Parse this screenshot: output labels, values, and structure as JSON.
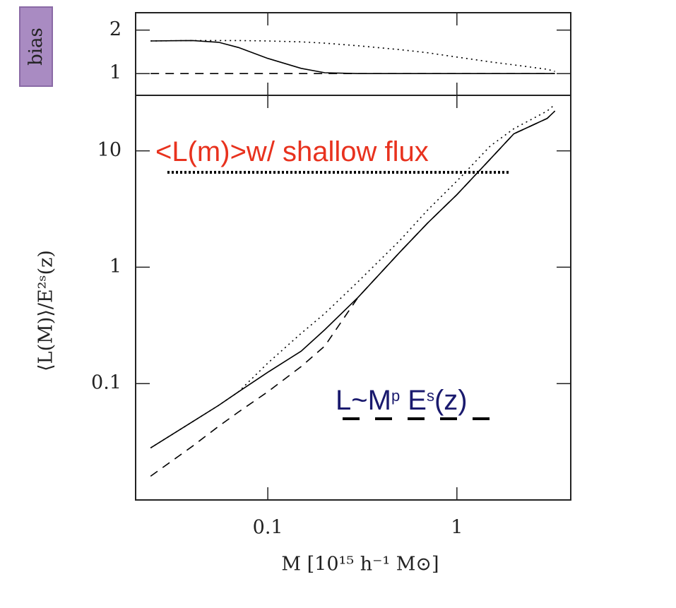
{
  "chart_data": [
    {
      "type": "line",
      "ylabel": "bias",
      "xscale": "log",
      "yscale": "linear",
      "xlim": [
        0.02,
        4
      ],
      "ylim": [
        0.5,
        2.4
      ],
      "xticks": [
        0.1,
        1
      ],
      "yticks": [
        1,
        2
      ],
      "xtick_labels": false,
      "x": [
        0.024,
        0.04,
        0.055,
        0.07,
        0.1,
        0.15,
        0.2,
        0.3,
        0.5,
        0.7,
        1,
        1.5,
        2,
        3,
        3.3
      ],
      "series": [
        {
          "color": "#000000",
          "style": "solid",
          "values": [
            1.75,
            1.76,
            1.72,
            1.6,
            1.35,
            1.12,
            1.02,
            1,
            1,
            1,
            1,
            1,
            1,
            1,
            1
          ]
        },
        {
          "color": "#000000",
          "style": "dotted",
          "values": [
            1.75,
            1.76,
            1.76,
            1.76,
            1.75,
            1.73,
            1.7,
            1.64,
            1.55,
            1.48,
            1.38,
            1.27,
            1.2,
            1.1,
            1.05
          ]
        },
        {
          "color": "#000000",
          "style": "dashed",
          "values": [
            1,
            1,
            1,
            1,
            1,
            1,
            1,
            1,
            1,
            1,
            1,
            1,
            1,
            1,
            1
          ]
        }
      ]
    },
    {
      "type": "line",
      "ylabel": "⟨L(M)⟩/E²ˢ(z)",
      "xlabel": "M [10¹⁵ h⁻¹ M⊙]",
      "xscale": "log",
      "yscale": "log",
      "xlim": [
        0.02,
        4
      ],
      "ylim": [
        0.01,
        30
      ],
      "xticks": [
        0.1,
        1
      ],
      "yticks": [
        0.1,
        1,
        10
      ],
      "xtick_labels": true,
      "x": [
        0.024,
        0.04,
        0.055,
        0.07,
        0.1,
        0.15,
        0.2,
        0.3,
        0.5,
        0.7,
        1,
        1.5,
        2,
        3,
        3.3
      ],
      "series": [
        {
          "color": "#000000",
          "style": "solid",
          "values": [
            0.028,
            0.047,
            0.065,
            0.085,
            0.125,
            0.19,
            0.29,
            0.55,
            1.35,
            2.4,
            4.2,
            8.5,
            14,
            19,
            22
          ]
        },
        {
          "color": "#000000",
          "style": "dotted",
          "values": [
            0.028,
            0.047,
            0.065,
            0.085,
            0.15,
            0.27,
            0.4,
            0.75,
            1.7,
            3.1,
            5.5,
            11,
            15.5,
            22,
            25
          ]
        },
        {
          "color": "#000000",
          "style": "dashed",
          "values": [
            0.016,
            0.029,
            0.043,
            0.057,
            0.085,
            0.14,
            0.21,
            0.55,
            1.35,
            2.4,
            4.2,
            8.5,
            14,
            19,
            22
          ]
        }
      ],
      "annotations": [
        {
          "color": "#e8321e",
          "underline": "dotted",
          "parts": [
            {
              "text": "<L(m)>w/ shallow flux",
              "sup": false
            }
          ]
        },
        {
          "color": "#1a1a6e",
          "underline": "dashed",
          "parts": [
            {
              "text": "L~M",
              "sup": false
            },
            {
              "text": "p",
              "sup": true
            },
            {
              "text": " E",
              "sup": false
            },
            {
              "text": "s",
              "sup": true
            },
            {
              "text": "(z)",
              "sup": false
            }
          ]
        }
      ]
    }
  ]
}
